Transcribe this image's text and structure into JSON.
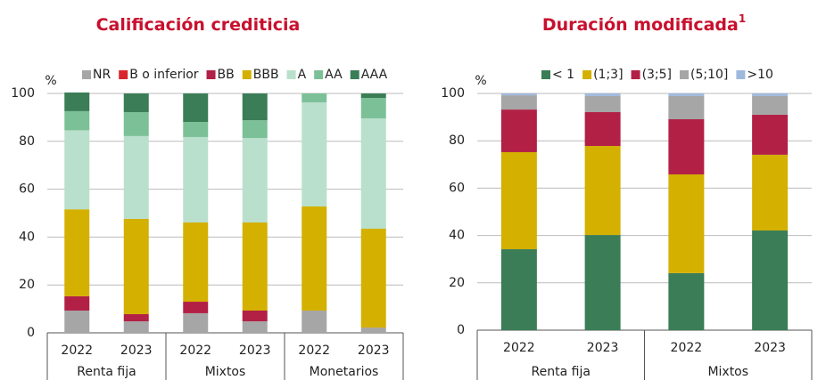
{
  "chart_data": [
    {
      "type": "bar",
      "stacked": true,
      "title": "Calificación crediticia",
      "y_label": "%",
      "categories": [
        "2022",
        "2023",
        "2022",
        "2023",
        "2022",
        "2023"
      ],
      "groups": [
        "Renta fija",
        "Mixtos",
        "Monetarios"
      ],
      "ylim": [
        0,
        100
      ],
      "yticks": [
        0,
        20,
        40,
        60,
        80,
        100
      ],
      "grid": true,
      "series": [
        {
          "name": "NR",
          "color": "#a6a6a6",
          "values": [
            9.3,
            4.8,
            8.2,
            4.8,
            9.3,
            2.2
          ]
        },
        {
          "name": "B o inferior",
          "color": "#d9262e",
          "values": [
            0,
            0,
            0,
            0,
            0,
            0
          ]
        },
        {
          "name": "BB",
          "color": "#b22045",
          "values": [
            6,
            3,
            4.8,
            4.5,
            0,
            0
          ]
        },
        {
          "name": "BBB",
          "color": "#d4b000",
          "values": [
            36.3,
            39.8,
            33.1,
            36.8,
            43.5,
            41.3
          ]
        },
        {
          "name": "A",
          "color": "#b9e0cc",
          "values": [
            33,
            34.6,
            35.7,
            35.3,
            43.5,
            46.1
          ]
        },
        {
          "name": "AA",
          "color": "#7cc097",
          "values": [
            8,
            10,
            6.3,
            7.4,
            3.7,
            8.5
          ]
        },
        {
          "name": "AAA",
          "color": "#3a7d57",
          "values": [
            7.8,
            7.8,
            11.9,
            11.2,
            0,
            1.9
          ]
        }
      ]
    },
    {
      "type": "bar",
      "stacked": true,
      "title": "Duración modificada",
      "title_note": "1",
      "y_label": "%",
      "categories": [
        "2022",
        "2023",
        "2022",
        "2023"
      ],
      "groups": [
        "Renta fija",
        "Mixtos"
      ],
      "ylim": [
        0,
        100
      ],
      "yticks": [
        0,
        20,
        40,
        60,
        80,
        100
      ],
      "grid": true,
      "series": [
        {
          "name": "< 1",
          "color": "#3a7d57",
          "values": [
            34.2,
            40.2,
            24.1,
            42.1
          ]
        },
        {
          "name": "(1;3]",
          "color": "#d4b000",
          "values": [
            41,
            37.6,
            41.7,
            32
          ]
        },
        {
          "name": "(3;5]",
          "color": "#b22045",
          "values": [
            18,
            14.3,
            23.3,
            16.9
          ]
        },
        {
          "name": "(5;10]",
          "color": "#a6a6a6",
          "values": [
            6,
            6.8,
            9.8,
            7.9
          ]
        },
        {
          "name": ">10",
          "color": "#9fb9dc",
          "values": [
            0.8,
            1.1,
            1.1,
            1.1
          ]
        }
      ]
    }
  ]
}
